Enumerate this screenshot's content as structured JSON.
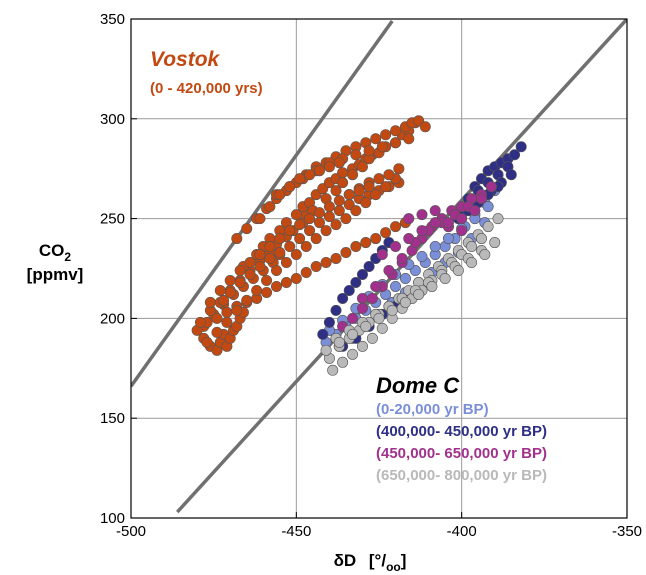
{
  "chart_data": {
    "type": "scatter",
    "title": "",
    "xlabel": "δD",
    "xlabel_unit": "[°/oo]",
    "ylabel": "CO2",
    "ylabel_unit": "[ppmv]",
    "xlim": [
      -500,
      -350
    ],
    "ylim": [
      100,
      350
    ],
    "x_ticks": [
      -500,
      -450,
      -400,
      -350
    ],
    "y_ticks": [
      100,
      150,
      200,
      250,
      300,
      350
    ],
    "grid": true,
    "legend_position": "right, inside plot",
    "groups": [
      {
        "title": "Vostok",
        "subtitle": "(0 - 420,000 yrs)",
        "title_color": "#c24a12"
      },
      {
        "title": "Dome C",
        "title_color": "#000000"
      }
    ],
    "regression_lines": [
      {
        "label": "Vostok fit",
        "points": [
          [
            -500,
            166
          ],
          [
            -421,
            349
          ]
        ],
        "color": "#707070"
      },
      {
        "label": "Dome C fit",
        "points": [
          [
            -486,
            103
          ],
          [
            -350,
            350
          ]
        ],
        "color": "#707070"
      }
    ],
    "series": [
      {
        "name": "(0 - 420,000 yrs)",
        "group": "Vostok",
        "color": "#c24a12",
        "x": [
          -478,
          -476,
          -474,
          -473,
          -472,
          -471,
          -470,
          -469,
          -468,
          -467,
          -466,
          -478,
          -475,
          -472,
          -469,
          -466,
          -463,
          -460,
          -457,
          -455,
          -473,
          -470,
          -467,
          -464,
          -461,
          -458,
          -456,
          -453,
          -451,
          -448,
          -447,
          -466,
          -462,
          -460,
          -458,
          -455,
          -453,
          -450,
          -448,
          -446,
          -444,
          -442,
          -440,
          -438,
          -436,
          -433,
          -431,
          -429,
          -427,
          -445,
          -441,
          -438,
          -436,
          -433,
          -430,
          -428,
          -425,
          -423,
          -420,
          -418,
          -416,
          -414,
          -480,
          -477,
          -474,
          -471,
          -468,
          -465,
          -462,
          -459,
          -456,
          -453,
          -450,
          -447,
          -444,
          -441,
          -438,
          -435,
          -432,
          -429,
          -426,
          -423,
          -420,
          -417,
          -479,
          -476,
          -472,
          -470,
          -467,
          -464,
          -461,
          -458,
          -455,
          -452,
          -449,
          -446,
          -443,
          -440,
          -437,
          -434,
          -431,
          -428,
          -425,
          -422,
          -419,
          -476,
          -473,
          -470,
          -467,
          -464,
          -461,
          -458,
          -455,
          -452,
          -449,
          -446,
          -443,
          -440,
          -437,
          -434,
          -431,
          -428,
          -477,
          -474,
          -471,
          -468,
          -465,
          -462,
          -459,
          -456,
          -453,
          -450,
          -447,
          -444,
          -441,
          -438,
          -435,
          -432,
          -429,
          -426,
          -423,
          -420,
          -468,
          -465,
          -462,
          -459,
          -456,
          -453,
          -450,
          -447,
          -444,
          -441,
          -438,
          -435,
          -432,
          -429,
          -426,
          -423,
          -420,
          -417,
          -415,
          -413,
          -411,
          -416,
          -456,
          -452,
          -448,
          -444,
          -440,
          -436,
          -432,
          -428,
          -424,
          -420,
          -461,
          -458,
          -455,
          -452,
          -449,
          -446,
          -443,
          -440,
          -437,
          -434,
          -431,
          -428,
          -425,
          -422,
          -419
        ],
        "y": [
          190,
          186,
          184,
          188,
          192,
          186,
          190,
          194,
          196,
          200,
          203,
          196,
          202,
          207,
          212,
          216,
          220,
          224,
          228,
          232,
          208,
          214,
          219,
          224,
          229,
          233,
          237,
          241,
          244,
          248,
          252,
          226,
          232,
          236,
          240,
          244,
          248,
          252,
          256,
          258,
          262,
          265,
          268,
          270,
          273,
          275,
          277,
          280,
          282,
          254,
          260,
          264,
          268,
          272,
          276,
          280,
          283,
          286,
          288,
          292,
          294,
          298,
          194,
          198,
          200,
          203,
          206,
          208,
          210,
          213,
          216,
          218,
          220,
          223,
          226,
          228,
          230,
          233,
          236,
          238,
          240,
          243,
          246,
          248,
          198,
          204,
          209,
          213,
          218,
          222,
          226,
          230,
          233,
          236,
          240,
          244,
          248,
          251,
          254,
          257,
          260,
          262,
          264,
          266,
          268,
          208,
          214,
          219,
          224,
          228,
          232,
          236,
          240,
          244,
          247,
          250,
          253,
          256,
          259,
          262,
          265,
          268,
          188,
          193,
          198,
          204,
          209,
          214,
          219,
          224,
          228,
          232,
          236,
          240,
          244,
          247,
          250,
          254,
          258,
          262,
          266,
          270,
          240,
          245,
          250,
          255,
          260,
          264,
          268,
          272,
          276,
          278,
          281,
          284,
          286,
          288,
          290,
          292,
          294,
          296,
          298,
          299,
          296,
          290,
          262,
          266,
          270,
          274,
          278,
          280,
          282,
          284,
          286,
          288,
          250,
          256,
          262,
          266,
          270,
          272,
          274,
          276,
          278,
          262,
          264,
          266,
          270,
          272,
          275
        ]
      },
      {
        "name": "(0-20,000 yr BP)",
        "group": "Dome C",
        "color": "#7b8fd9",
        "x": [
          -441,
          -438,
          -435,
          -432,
          -429,
          -426,
          -423,
          -420,
          -417,
          -414,
          -411,
          -408,
          -405,
          -402,
          -399,
          -396,
          -393,
          -390,
          -440,
          -436,
          -432,
          -428,
          -424,
          -420,
          -416,
          -412,
          -408,
          -404,
          -400,
          -396,
          -392,
          -437,
          -433,
          -429,
          -425,
          -421,
          -417,
          -413,
          -409,
          -405,
          -401,
          -397,
          -393
        ],
        "y": [
          188,
          192,
          196,
          200,
          204,
          208,
          212,
          216,
          220,
          224,
          228,
          232,
          236,
          240,
          246,
          252,
          258,
          264,
          194,
          199,
          205,
          211,
          217,
          222,
          227,
          231,
          236,
          240,
          245,
          250,
          256,
          186,
          190,
          196,
          202,
          208,
          213,
          218,
          223,
          228,
          233,
          240,
          248
        ]
      },
      {
        "name": "(400,000- 450,000 yr BP)",
        "group": "Dome C",
        "color": "#2e2f85",
        "x": [
          -442,
          -440,
          -438,
          -436,
          -434,
          -432,
          -430,
          -428,
          -426,
          -424,
          -422,
          -396,
          -394,
          -392,
          -390,
          -388,
          -386,
          -384,
          -382,
          -398,
          -395,
          -392,
          -389,
          -386,
          -400,
          -397,
          -394,
          -391,
          -388,
          -385,
          -436,
          -432,
          -428,
          -424,
          -420,
          -404,
          -401,
          -398,
          -395,
          -392,
          -389
        ],
        "y": [
          192,
          198,
          204,
          210,
          214,
          218,
          222,
          226,
          230,
          234,
          238,
          266,
          270,
          274,
          276,
          278,
          280,
          282,
          286,
          260,
          264,
          268,
          272,
          276,
          252,
          256,
          260,
          264,
          268,
          272,
          186,
          190,
          196,
          202,
          206,
          246,
          250,
          254,
          258,
          262,
          266
        ]
      },
      {
        "name": "(450,000- 650,000 yr BP)",
        "group": "Dome C",
        "color": "#a2318d",
        "x": [
          -436,
          -433,
          -430,
          -427,
          -424,
          -421,
          -418,
          -415,
          -412,
          -409,
          -406,
          -403,
          -400,
          -397,
          -394,
          -391,
          -430,
          -426,
          -422,
          -418,
          -414,
          -410,
          -406,
          -402,
          -398,
          -394,
          -424,
          -420,
          -416,
          -412,
          -408,
          -404,
          -400,
          -396,
          -416,
          -412,
          -408,
          -404,
          -400
        ],
        "y": [
          196,
          200,
          205,
          210,
          216,
          222,
          228,
          234,
          240,
          246,
          250,
          254,
          256,
          260,
          262,
          266,
          210,
          216,
          224,
          230,
          238,
          244,
          248,
          252,
          256,
          260,
          232,
          236,
          240,
          244,
          248,
          246,
          250,
          254,
          250,
          252,
          254,
          248,
          244
        ]
      },
      {
        "name": "(650,000- 800,000 yr BP)",
        "group": "Dome C",
        "color": "#b9b9b9",
        "x": [
          -440,
          -437,
          -434,
          -431,
          -428,
          -425,
          -422,
          -419,
          -416,
          -413,
          -410,
          -407,
          -404,
          -401,
          -398,
          -395,
          -392,
          -389,
          -439,
          -436,
          -433,
          -430,
          -427,
          -424,
          -421,
          -418,
          -415,
          -412,
          -409,
          -406,
          -403,
          -400,
          -397,
          -394,
          -438,
          -434,
          -430,
          -426,
          -422,
          -418,
          -414,
          -410,
          -406,
          -402,
          -398,
          -394,
          -390,
          -441,
          -437,
          -433,
          -429,
          -425,
          -421,
          -417,
          -413,
          -409,
          -405,
          -401,
          -397,
          -393
        ],
        "y": [
          180,
          186,
          190,
          194,
          198,
          202,
          206,
          210,
          214,
          218,
          222,
          226,
          230,
          234,
          238,
          242,
          246,
          250,
          174,
          178,
          182,
          186,
          190,
          195,
          200,
          205,
          210,
          214,
          219,
          224,
          228,
          232,
          236,
          240,
          190,
          194,
          198,
          202,
          206,
          210,
          214,
          218,
          222,
          226,
          230,
          234,
          238,
          184,
          188,
          192,
          196,
          200,
          204,
          208,
          212,
          216,
          220,
          224,
          228,
          232
        ]
      }
    ]
  }
}
